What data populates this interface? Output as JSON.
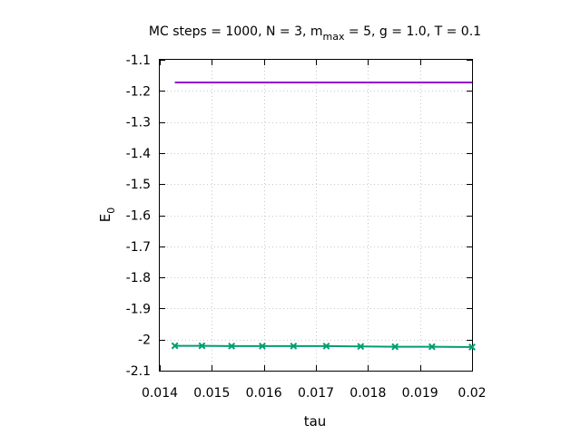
{
  "chart_data": {
    "type": "line",
    "title": {
      "main": "MC steps = 1000, N = 3, m",
      "sub": "max",
      "rest": " = 5, g = 1.0, T = 0.1"
    },
    "xlabel": "tau",
    "ylabel": {
      "main": "E",
      "sub": "0"
    },
    "xlim": [
      0.014,
      0.02
    ],
    "ylim": [
      -2.1,
      -1.1
    ],
    "xticks": [
      0.014,
      0.015,
      0.016,
      0.017,
      0.018,
      0.019,
      0.02
    ],
    "xtick_labels": [
      "0.014",
      "0.015",
      "0.016",
      "0.017",
      "0.018",
      "0.019",
      "0.02"
    ],
    "yticks": [
      -1.1,
      -1.2,
      -1.3,
      -1.4,
      -1.5,
      -1.6,
      -1.7,
      -1.8,
      -1.9,
      -2.0,
      -2.1
    ],
    "ytick_labels": [
      "-1.1",
      "-1.2",
      "-1.3",
      "-1.4",
      "-1.5",
      "-1.6",
      "-1.7",
      "-1.8",
      "-1.9",
      "-2",
      "-2.1"
    ],
    "grid": true,
    "series": [
      {
        "color": "#9400d3",
        "marker": "none",
        "x": [
          0.01429,
          0.02
        ],
        "y": [
          -1.173,
          -1.173
        ]
      },
      {
        "color": "#009e73",
        "marker": "x",
        "x": [
          0.01429,
          0.01481,
          0.01538,
          0.01597,
          0.01657,
          0.0172,
          0.01786,
          0.01852,
          0.01923,
          0.02
        ],
        "y": [
          -2.02,
          -2.02,
          -2.021,
          -2.021,
          -2.021,
          -2.021,
          -2.022,
          -2.023,
          -2.023,
          -2.024
        ]
      }
    ]
  }
}
